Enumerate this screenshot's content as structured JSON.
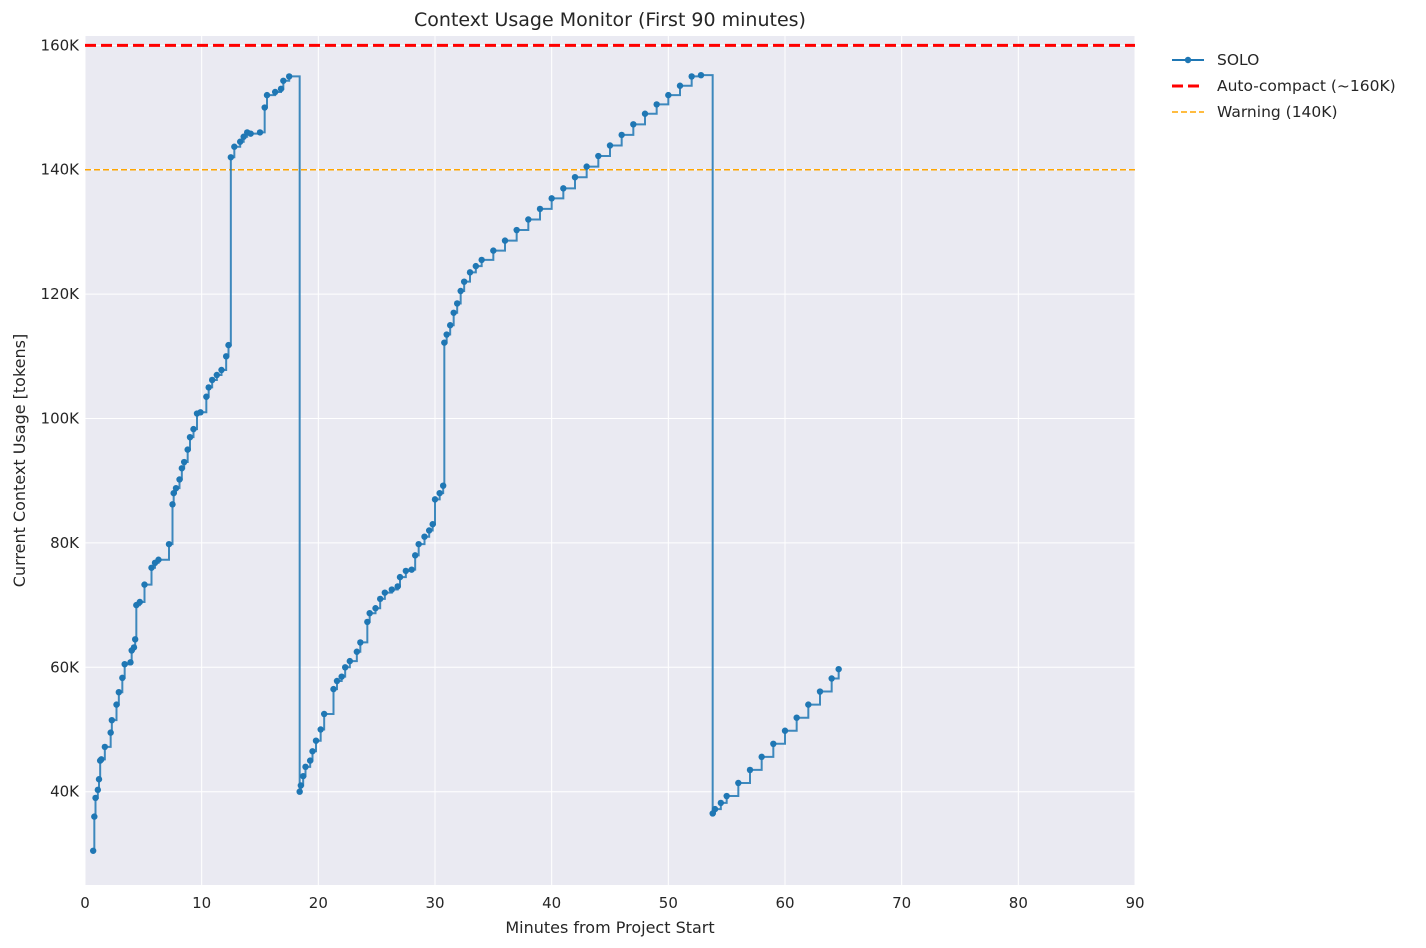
{
  "chart_data": {
    "type": "line",
    "title": "Context Usage Monitor (First 90 minutes)",
    "xlabel": "Minutes from Project Start",
    "ylabel": "Current Context Usage [tokens]",
    "xlim": [
      0,
      90
    ],
    "ylim": [
      25000,
      161500
    ],
    "x_ticks": [
      0,
      10,
      20,
      30,
      40,
      50,
      60,
      70,
      80,
      90
    ],
    "x_tick_labels": [
      "0",
      "10",
      "20",
      "30",
      "40",
      "50",
      "60",
      "70",
      "80",
      "90"
    ],
    "y_ticks": [
      40000,
      60000,
      80000,
      100000,
      120000,
      140000,
      160000
    ],
    "y_tick_labels": [
      "40K",
      "60K",
      "80K",
      "100K",
      "120K",
      "140K",
      "160K"
    ],
    "grid": true,
    "legend_position": "outside-top-right",
    "series": [
      {
        "name": "SOLO",
        "color": "#1f77b4",
        "step": "post",
        "x": [
          0.7,
          0.8,
          0.9,
          1.1,
          1.2,
          1.3,
          1.4,
          1.7,
          2.2,
          2.3,
          2.7,
          2.9,
          3.2,
          3.4,
          3.9,
          4.0,
          4.2,
          4.3,
          4.4,
          4.7,
          5.1,
          5.7,
          6.0,
          6.3,
          7.2,
          7.5,
          7.6,
          7.8,
          8.1,
          8.3,
          8.5,
          8.8,
          9.0,
          9.3,
          9.6,
          9.9,
          10.4,
          10.6,
          10.9,
          11.3,
          11.7,
          12.1,
          12.3,
          12.5,
          12.8,
          13.3,
          13.6,
          13.9,
          14.2,
          15.0,
          15.4,
          15.6,
          16.3,
          16.8,
          17.0,
          17.5,
          18.4,
          18.5,
          18.7,
          18.9,
          19.3,
          19.5,
          19.8,
          20.2,
          20.5,
          21.3,
          21.6,
          22.0,
          22.3,
          22.7,
          23.3,
          23.6,
          24.2,
          24.4,
          24.9,
          25.3,
          25.7,
          26.3,
          26.8,
          27.0,
          27.5,
          28.0,
          28.3,
          28.6,
          29.1,
          29.5,
          29.8,
          30.0,
          30.4,
          30.7,
          30.8,
          31.0,
          31.3,
          31.6,
          31.9,
          32.2,
          32.5,
          33.0,
          33.5,
          34.0,
          35.0,
          36.0,
          37.0,
          38.0,
          39.0,
          40.0,
          41.0,
          42.0,
          43.0,
          44.0,
          45.0,
          46.0,
          47.0,
          48.0,
          49.0,
          50.0,
          51.0,
          52.0,
          52.8,
          53.8,
          54.0,
          54.5,
          55.0,
          56.0,
          57.0,
          58.0,
          59.0,
          60.0,
          61.0,
          62.0,
          63.0,
          64.0,
          64.6
        ],
        "y": [
          30500,
          36000,
          39000,
          40300,
          42000,
          45000,
          45200,
          47200,
          49500,
          51500,
          54000,
          56000,
          58300,
          60500,
          60800,
          62700,
          63200,
          64500,
          70000,
          70500,
          73300,
          76000,
          76800,
          77300,
          79800,
          86200,
          88000,
          88800,
          90200,
          92000,
          93000,
          95000,
          97000,
          98300,
          100800,
          101000,
          103500,
          105000,
          106200,
          107000,
          107800,
          110000,
          111800,
          142000,
          143700,
          144500,
          145300,
          146000,
          145800,
          146000,
          150000,
          152000,
          152500,
          153000,
          154300,
          155000,
          40000,
          41000,
          42500,
          44000,
          45000,
          46500,
          48200,
          50000,
          52500,
          56500,
          57800,
          58500,
          60000,
          61000,
          62500,
          64000,
          67300,
          68700,
          69500,
          71000,
          72000,
          72500,
          73000,
          74500,
          75500,
          75700,
          78000,
          79800,
          81000,
          82000,
          83000,
          87000,
          88000,
          89200,
          112200,
          113500,
          115000,
          117000,
          118500,
          120500,
          122000,
          123500,
          124500,
          125500,
          127000,
          128600,
          130300,
          132000,
          133700,
          135400,
          137000,
          138800,
          140500,
          142200,
          143900,
          145600,
          147300,
          149000,
          150500,
          152000,
          153500,
          155000,
          155200,
          36500,
          37200,
          38200,
          39300,
          41400,
          43500,
          45600,
          47700,
          49800,
          51900,
          54000,
          56100,
          58200,
          59700
        ]
      },
      {
        "name": "Auto-compact (~160K)",
        "color": "#ff0000",
        "style": "dashed",
        "y_value": 160000
      },
      {
        "name": "Warning (140K)",
        "color": "#ffa500",
        "style": "dashed",
        "y_value": 140000
      }
    ]
  }
}
